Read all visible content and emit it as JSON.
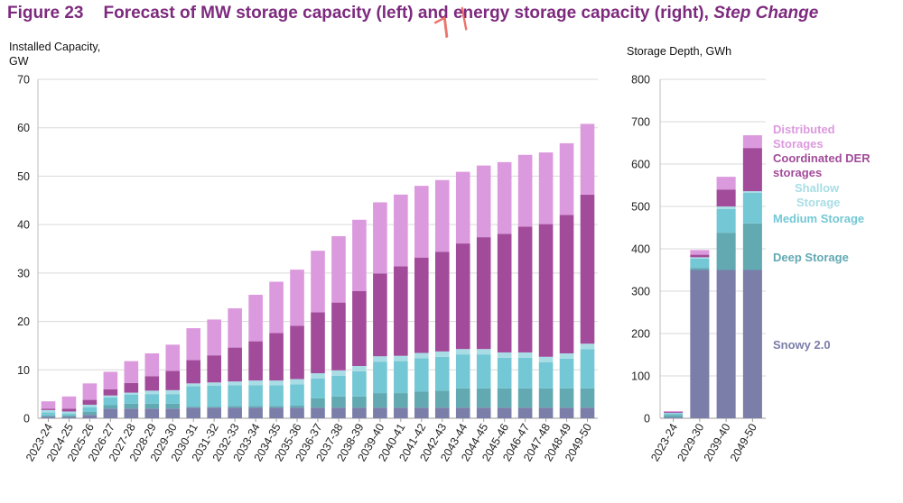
{
  "figure": {
    "number": "Figure 23",
    "title_main": "Forecast of MW storage capacity (left) and energy storage capacity (right),",
    "title_sub": "Step Change"
  },
  "colors": {
    "snowy": "#7a7ea8",
    "deep": "#62a9b2",
    "medium": "#74c8d5",
    "shallow": "#a9dde5",
    "der": "#a24b9a",
    "distributed": "#dc9ade",
    "title": "#7d2a7e",
    "grid": "#d9d9d9"
  },
  "watermark_text": "7  /",
  "chart_data": [
    {
      "type": "bar",
      "stacked": true,
      "ylabel_lines": [
        "Installed Capacity,",
        "GW"
      ],
      "ylim": [
        0,
        70
      ],
      "yticks": [
        0,
        10,
        20,
        30,
        40,
        50,
        60,
        70
      ],
      "grid": true,
      "categories": [
        "2023-24",
        "2024-25",
        "2025-26",
        "2026-27",
        "2027-28",
        "2028-29",
        "2029-30",
        "2030-31",
        "2031-32",
        "2032-33",
        "2033-34",
        "2034-35",
        "2035-36",
        "2036-37",
        "2037-38",
        "2038-39",
        "2039-40",
        "2040-41",
        "2041-42",
        "2042-43",
        "2043-44",
        "2044-45",
        "2045-46",
        "2046-47",
        "2047-48",
        "2048-49",
        "2049-50"
      ],
      "series": [
        {
          "key": "snowy",
          "values": [
            0.3,
            0.3,
            0.7,
            2,
            2,
            2,
            2,
            2.2,
            2.2,
            2.2,
            2.2,
            2.2,
            2.2,
            2.2,
            2.2,
            2.2,
            2.2,
            2.2,
            2.2,
            2.2,
            2.2,
            2.2,
            2.2,
            2.2,
            2.2,
            2.2,
            2.2
          ]
        },
        {
          "key": "deep",
          "values": [
            0.3,
            0.3,
            0.6,
            0.7,
            1,
            1,
            1,
            0.2,
            0.2,
            0.3,
            0.3,
            0.3,
            0.4,
            1.9,
            2.3,
            2.3,
            3,
            3,
            3.3,
            3.5,
            4,
            4,
            4,
            4,
            4,
            4,
            4
          ]
        },
        {
          "key": "medium",
          "values": [
            0.6,
            0.4,
            1,
            1.6,
            1.9,
            2,
            2,
            4.2,
            4.3,
            4.3,
            4.3,
            4.3,
            4.4,
            4.1,
            4.3,
            5.2,
            6.5,
            6.6,
            6.9,
            7,
            7,
            7,
            6.3,
            6.3,
            5.4,
            6.1,
            8.1
          ]
        },
        {
          "key": "shallow",
          "values": [
            0.5,
            0.4,
            0.5,
            0.4,
            0.4,
            0.7,
            0.8,
            0.6,
            0.7,
            0.8,
            1,
            1,
            1.1,
            1.1,
            1.1,
            1.1,
            1.1,
            1.1,
            1.1,
            1.1,
            1.1,
            1.1,
            1.1,
            1.1,
            1.1,
            1.1,
            1.1
          ]
        },
        {
          "key": "der",
          "values": [
            0.3,
            0.6,
            1,
            1.3,
            2,
            3,
            4,
            4.8,
            5.6,
            7,
            8.1,
            9.8,
            11,
            12.6,
            14,
            15.5,
            17.1,
            18.5,
            19.7,
            20.6,
            21.8,
            23.1,
            24.5,
            26,
            27.4,
            28.6,
            30.8
          ]
        },
        {
          "key": "distributed",
          "values": [
            1.5,
            2.5,
            3.4,
            3.6,
            4.5,
            4.7,
            5.4,
            6.6,
            7.4,
            8.1,
            9.6,
            10.6,
            11.6,
            12.7,
            13.7,
            14.7,
            14.7,
            14.8,
            14.8,
            14.8,
            14.8,
            14.8,
            14.8,
            14.8,
            14.8,
            14.8,
            14.6
          ]
        }
      ]
    },
    {
      "type": "bar",
      "stacked": true,
      "ylabel_lines": [
        "Storage Depth, GWh"
      ],
      "ylim": [
        0,
        800
      ],
      "yticks": [
        0,
        100,
        200,
        300,
        400,
        500,
        600,
        700,
        800
      ],
      "grid": true,
      "categories": [
        "2023-24",
        "2029-30",
        "2039-40",
        "2049-50"
      ],
      "series": [
        {
          "key": "snowy",
          "values": [
            2,
            350,
            350,
            350
          ]
        },
        {
          "key": "deep",
          "values": [
            6,
            5,
            88,
            110
          ]
        },
        {
          "key": "medium",
          "values": [
            4,
            22,
            56,
            72
          ]
        },
        {
          "key": "shallow",
          "values": [
            1,
            3,
            6,
            4
          ]
        },
        {
          "key": "der",
          "values": [
            2,
            6,
            40,
            102
          ]
        },
        {
          "key": "distributed",
          "values": [
            2,
            11,
            30,
            30
          ]
        }
      ],
      "legend": [
        {
          "key": "distributed",
          "lines": [
            "Distributed",
            "Storages"
          ],
          "align": "start"
        },
        {
          "key": "der",
          "lines": [
            "Coordinated DER",
            "storages"
          ],
          "align": "start"
        },
        {
          "key": "shallow",
          "lines": [
            "Shallow",
            "Storage"
          ],
          "align": "start"
        },
        {
          "key": "medium",
          "lines": [
            "Medium Storage"
          ],
          "align": "start"
        },
        {
          "key": "deep",
          "lines": [
            "Deep Storage"
          ],
          "align": "start"
        },
        {
          "key": "snowy",
          "lines": [
            "Snowy 2.0"
          ],
          "align": "start"
        }
      ]
    }
  ]
}
